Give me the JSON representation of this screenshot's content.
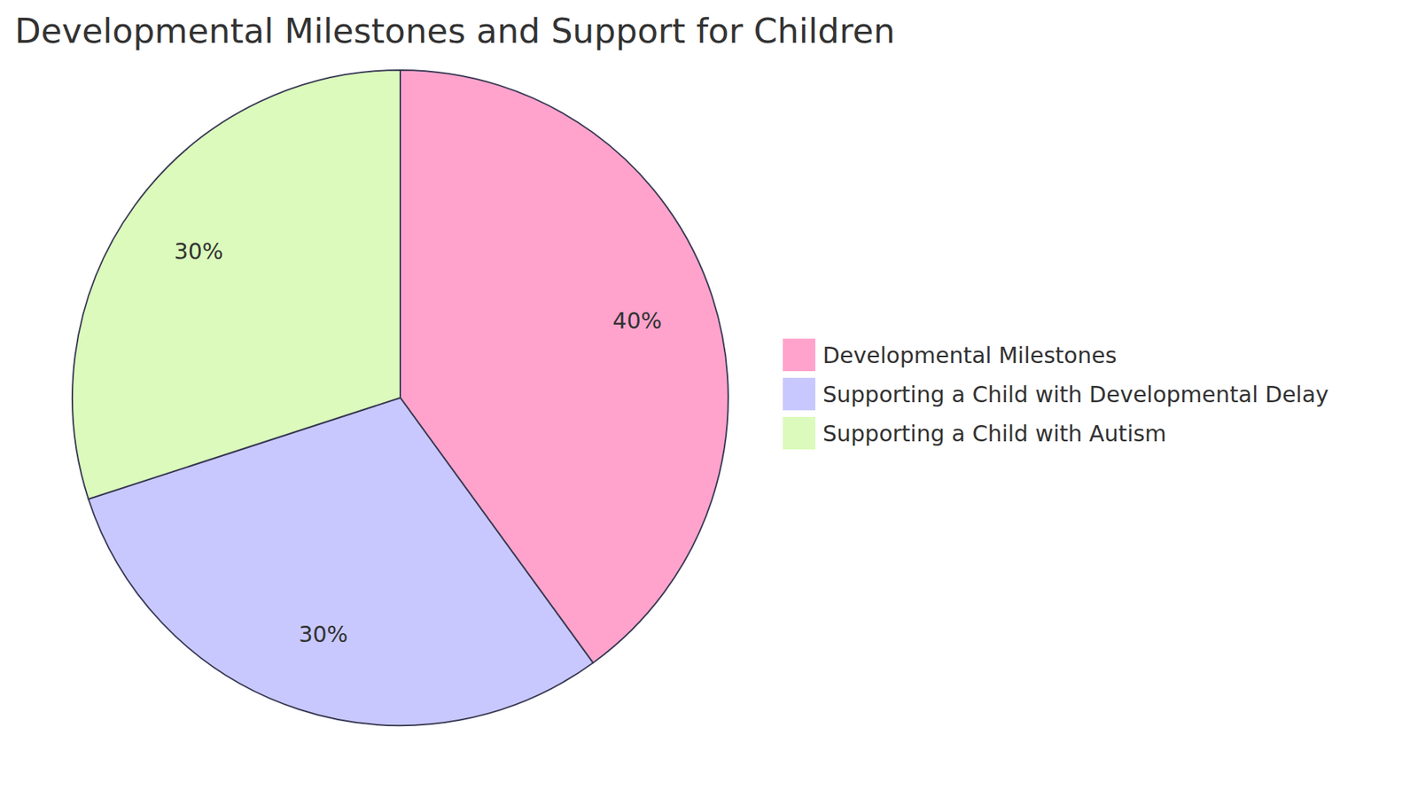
{
  "chart_data": {
    "type": "pie",
    "title": "Developmental Milestones and Support for Children",
    "categories": [
      "Developmental Milestones",
      "Supporting a Child with Developmental Delay",
      "Supporting a Child with Autism"
    ],
    "values": [
      40,
      30,
      30
    ],
    "value_labels": [
      "40%",
      "30%",
      "30%"
    ],
    "colors": [
      "#ffa3cc",
      "#c8c8ff",
      "#dbfabc"
    ],
    "data_labels": true,
    "legend": "right"
  }
}
